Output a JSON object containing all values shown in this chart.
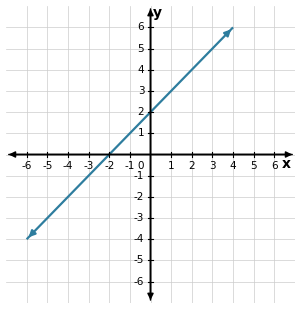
{
  "xlim": [
    -7,
    7
  ],
  "ylim": [
    -7,
    7
  ],
  "xticks": [
    -6,
    -5,
    -4,
    -3,
    -2,
    -1,
    1,
    2,
    3,
    4,
    5,
    6
  ],
  "yticks": [
    -6,
    -5,
    -4,
    -3,
    -2,
    -1,
    1,
    2,
    3,
    4,
    5,
    6
  ],
  "xlabel": "x",
  "ylabel": "y",
  "line_x1": -6.0,
  "line_y1": -4.0,
  "line_x2": 4.0,
  "line_y2": 6.0,
  "line_color": "#2e7d9e",
  "line_width": 1.6,
  "grid_color": "#cccccc",
  "axis_color": "#000000",
  "background_color": "#ffffff",
  "tick_label_fontsize": 7.5,
  "axis_label_fontsize": 10,
  "grid_linewidth": 0.5,
  "origin_label": "0"
}
